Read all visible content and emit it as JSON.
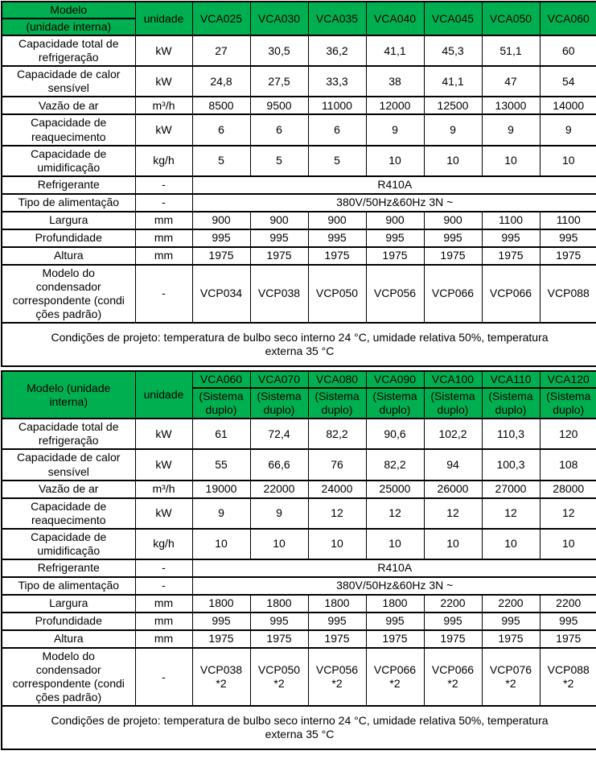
{
  "colors": {
    "header_green": "#00B050",
    "border": "#000000",
    "text": "#000000",
    "background": "#FFFFFF"
  },
  "tables": [
    {
      "name": "single-unit-spec",
      "header": {
        "model_title_line1": "Modelo",
        "model_title_line2": "(unidade interna)",
        "unit_column_label": "unidade",
        "models": [
          "VCA025",
          "VCA030",
          "VCA035",
          "VCA040",
          "VCA045",
          "VCA050",
          "VCA060"
        ]
      },
      "rows": [
        {
          "label": "Capacidade total de\nrefrigeração",
          "unit": "kW",
          "values": [
            "27",
            "30,5",
            "36,2",
            "41,1",
            "45,3",
            "51,1",
            "60"
          ]
        },
        {
          "label": "Capacidade de calor\nsensível",
          "unit": "kW",
          "values": [
            "24,8",
            "27,5",
            "33,3",
            "38",
            "41,1",
            "47",
            "54"
          ]
        },
        {
          "label": "Vazão de ar",
          "unit": "m³/h",
          "values": [
            "8500",
            "9500",
            "11000",
            "12000",
            "12500",
            "13000",
            "14000"
          ]
        },
        {
          "label": "Capacidade de\nreaquecimento",
          "unit": "kW",
          "values": [
            "6",
            "6",
            "6",
            "9",
            "9",
            "9",
            "9"
          ]
        },
        {
          "label": "Capacidade de\numidificação",
          "unit": "kg/h",
          "values": [
            "5",
            "5",
            "5",
            "10",
            "10",
            "10",
            "10"
          ]
        },
        {
          "label": "Refrigerante",
          "unit": "-",
          "merged_value": "R410A"
        },
        {
          "label": "Tipo de alimentação",
          "unit": "-",
          "merged_value": "380V/50Hz&60Hz 3N ~"
        },
        {
          "label": "Largura",
          "unit": "mm",
          "values": [
            "900",
            "900",
            "900",
            "900",
            "900",
            "1100",
            "1100"
          ]
        },
        {
          "label": "Profundidade",
          "unit": "mm",
          "values": [
            "995",
            "995",
            "995",
            "995",
            "995",
            "995",
            "995"
          ]
        },
        {
          "label": "Altura",
          "unit": "mm",
          "values": [
            "1975",
            "1975",
            "1975",
            "1975",
            "1975",
            "1975",
            "1975"
          ]
        },
        {
          "label": "Modelo do\ncondensador\ncorrespondente (condi\nções padrão)",
          "unit": "-",
          "values": [
            "VCP034",
            "VCP038",
            "VCP050",
            "VCP056",
            "VCP066",
            "VCP066",
            "VCP088"
          ]
        }
      ],
      "footer_note": "Condições de projeto: temperatura de bulbo seco interno 24 °C, umidade relativa 50%, temperatura\nexterna 35 °C"
    },
    {
      "name": "dual-system-spec",
      "header": {
        "model_title": "Modelo (unidade\ninterna)",
        "unit_column_label": "unidade",
        "models": [
          "VCA060",
          "VCA070",
          "VCA080",
          "VCA090",
          "VCA100",
          "VCA110",
          "VCA120"
        ],
        "model_subtitle": "(Sistema\nduplo)"
      },
      "rows": [
        {
          "label": "Capacidade total de\nrefrigeração",
          "unit": "kW",
          "values": [
            "61",
            "72,4",
            "82,2",
            "90,6",
            "102,2",
            "110,3",
            "120"
          ]
        },
        {
          "label": "Capacidade de calor\nsensível",
          "unit": "kW",
          "values": [
            "55",
            "66,6",
            "76",
            "82,2",
            "94",
            "100,3",
            "108"
          ]
        },
        {
          "label": "Vazão de ar",
          "unit": "m³/h",
          "values": [
            "19000",
            "22000",
            "24000",
            "25000",
            "26000",
            "27000",
            "28000"
          ]
        },
        {
          "label": "Capacidade de\nreaquecimento",
          "unit": "kW",
          "values": [
            "9",
            "9",
            "12",
            "12",
            "12",
            "12",
            "12"
          ]
        },
        {
          "label": "Capacidade de\numidificação",
          "unit": "kg/h",
          "values": [
            "10",
            "10",
            "10",
            "10",
            "10",
            "10",
            "10"
          ]
        },
        {
          "label": "Refrigerante",
          "unit": "-",
          "merged_value": "R410A"
        },
        {
          "label": "Tipo de alimentação",
          "unit": "-",
          "merged_value": "380V/50Hz&60Hz 3N ~"
        },
        {
          "label": "Largura",
          "unit": "mm",
          "values": [
            "1800",
            "1800",
            "1800",
            "1800",
            "2200",
            "2200",
            "2200"
          ]
        },
        {
          "label": "Profundidade",
          "unit": "mm",
          "values": [
            "995",
            "995",
            "995",
            "995",
            "995",
            "995",
            "995"
          ]
        },
        {
          "label": "Altura",
          "unit": "mm",
          "values": [
            "1975",
            "1975",
            "1975",
            "1975",
            "1975",
            "1975",
            "1975"
          ]
        },
        {
          "label": "Modelo do\ncondensador\ncorrespondente (condi\nções padrão)",
          "unit": "-",
          "values": [
            "VCP038\n*2",
            "VCP050\n*2",
            "VCP056\n*2",
            "VCP066\n*2",
            "VCP066\n*2",
            "VCP076\n*2",
            "VCP088\n*2"
          ]
        }
      ],
      "footer_note": "Condições de projeto: temperatura de bulbo seco interno 24 °C, umidade relativa 50%, temperatura\nexterna 35 °C"
    }
  ]
}
